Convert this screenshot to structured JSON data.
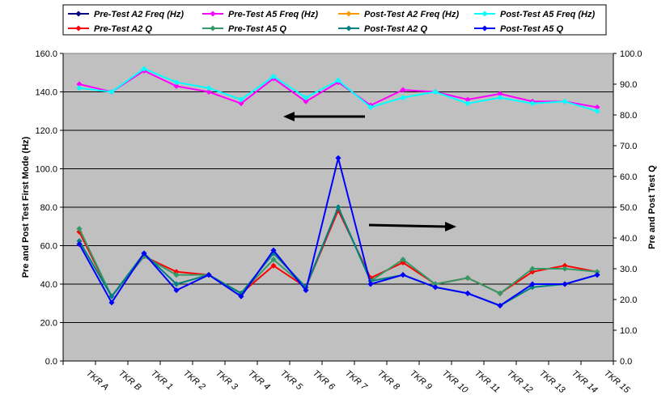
{
  "chart_data": {
    "type": "line",
    "categories": [
      "TKR A",
      "TKR B",
      "TKR 1",
      "TKR 2",
      "TKR 3",
      "TKR 4",
      "TKR 5",
      "TKR 6",
      "TKR 7",
      "TKR 8",
      "TKR 9",
      "TKR 10",
      "TKR 11",
      "TKR 12",
      "TKR 13",
      "TKR 14",
      "TKR 15"
    ],
    "ylabel_left": "Pre and Post Test First Mode (Hz)",
    "ylabel_right": "Pre and Post Test Q",
    "ylim_left": [
      0,
      160
    ],
    "ylim_right": [
      0,
      100
    ],
    "yticks_left": [
      "0.0",
      "20.0",
      "40.0",
      "60.0",
      "80.0",
      "100.0",
      "120.0",
      "140.0",
      "160.0"
    ],
    "yticks_right": [
      "0.0",
      "10.0",
      "20.0",
      "30.0",
      "40.0",
      "50.0",
      "60.0",
      "70.0",
      "80.0",
      "90.0",
      "100.0"
    ],
    "grid": true,
    "legend_position": "top",
    "plot_background": "#c0c0c0",
    "series": [
      {
        "name": "Pre-Test A2 Freq (Hz)",
        "axis": "left",
        "color": "#000080",
        "values": [
          null,
          null,
          null,
          null,
          null,
          null,
          null,
          null,
          null,
          null,
          null,
          null,
          null,
          null,
          null,
          null,
          null
        ]
      },
      {
        "name": "Pre-Test A5 Freq (Hz)",
        "axis": "left",
        "color": "#ff00ff",
        "values": [
          144,
          140,
          151,
          143,
          140,
          134,
          147,
          135,
          145,
          133,
          141,
          140,
          136,
          139,
          135,
          135,
          132
        ]
      },
      {
        "name": "Post-Test A2 Freq (Hz)",
        "axis": "left",
        "color": "#ff9900",
        "values": [
          null,
          null,
          null,
          null,
          null,
          null,
          null,
          null,
          null,
          null,
          null,
          null,
          null,
          null,
          null,
          null,
          null
        ]
      },
      {
        "name": "Post-Test A5 Freq (Hz)",
        "axis": "left",
        "color": "#00ffff",
        "values": [
          142,
          140,
          152,
          145,
          142,
          136,
          148,
          137,
          146,
          132,
          137,
          140,
          134,
          137,
          134,
          135,
          130
        ]
      },
      {
        "name": "Pre-Test A2 Q",
        "axis": "right",
        "color": "#ff0000",
        "values": [
          42,
          21,
          34,
          29,
          28,
          22,
          31,
          24,
          49,
          27,
          32,
          25,
          27,
          22,
          29,
          31,
          29
        ]
      },
      {
        "name": "Pre-Test A5 Q",
        "axis": "right",
        "color": "#339966",
        "values": [
          43,
          21,
          34,
          28,
          28,
          22,
          33,
          24,
          50,
          26,
          33,
          25,
          27,
          22,
          30,
          30,
          29
        ]
      },
      {
        "name": "Post-Test A2 Q",
        "axis": "right",
        "color": "#008080",
        "values": [
          39,
          21,
          35,
          25,
          28,
          22,
          35,
          24,
          50,
          26,
          28,
          24,
          22,
          18,
          24,
          25,
          28
        ]
      },
      {
        "name": "Post-Test A5 Q",
        "axis": "right",
        "color": "#0000ff",
        "values": [
          38,
          19,
          35,
          23,
          28,
          21,
          36,
          23,
          66,
          25,
          28,
          24,
          22,
          18,
          25,
          25,
          28
        ]
      }
    ]
  }
}
